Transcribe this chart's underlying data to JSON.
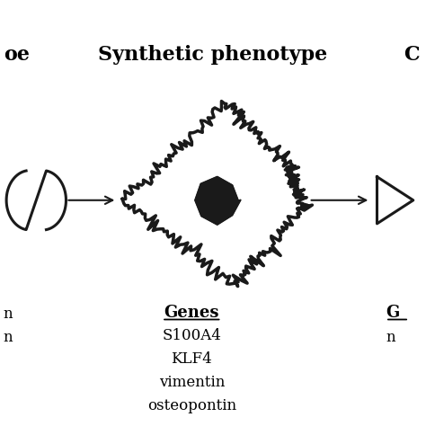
{
  "title": "Synthetic phenotype",
  "title_fontsize": 16,
  "title_fontweight": "bold",
  "genes_label": "Genes",
  "genes_label_fontsize": 13,
  "genes_fontsize": 12,
  "gene_list": [
    "S100A4",
    "KLF4",
    "vimentin",
    "osteopontin"
  ],
  "background_color": "#ffffff",
  "cell_color": "#ffffff",
  "cell_edge_color": "#1a1a1a",
  "nucleus_color": "#1a1a1a",
  "arrow_color": "#1a1a1a",
  "spindle_color": "#1a1a1a"
}
